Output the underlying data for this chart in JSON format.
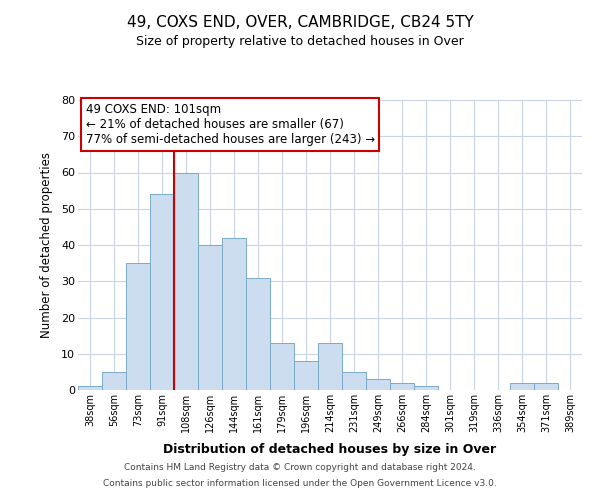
{
  "title": "49, COXS END, OVER, CAMBRIDGE, CB24 5TY",
  "subtitle": "Size of property relative to detached houses in Over",
  "xlabel": "Distribution of detached houses by size in Over",
  "ylabel": "Number of detached properties",
  "bar_color": "#ccddef",
  "bar_edge_color": "#7aaac8",
  "background_color": "#ffffff",
  "grid_color": "#c8d4e4",
  "annotation_box_color": "#cc0000",
  "annotation_line_color": "#cc0000",
  "categories": [
    "38sqm",
    "56sqm",
    "73sqm",
    "91sqm",
    "108sqm",
    "126sqm",
    "144sqm",
    "161sqm",
    "179sqm",
    "196sqm",
    "214sqm",
    "231sqm",
    "249sqm",
    "266sqm",
    "284sqm",
    "301sqm",
    "319sqm",
    "336sqm",
    "354sqm",
    "371sqm",
    "389sqm"
  ],
  "values": [
    1,
    5,
    35,
    54,
    60,
    40,
    42,
    31,
    13,
    8,
    13,
    5,
    3,
    2,
    1,
    0,
    0,
    0,
    2,
    2,
    0
  ],
  "ylim": [
    0,
    80
  ],
  "yticks": [
    0,
    10,
    20,
    30,
    40,
    50,
    60,
    70,
    80
  ],
  "vline_position": 3.5,
  "annotation_text": "49 COXS END: 101sqm\n← 21% of detached houses are smaller (67)\n77% of semi-detached houses are larger (243) →",
  "footer_line1": "Contains HM Land Registry data © Crown copyright and database right 2024.",
  "footer_line2": "Contains public sector information licensed under the Open Government Licence v3.0."
}
